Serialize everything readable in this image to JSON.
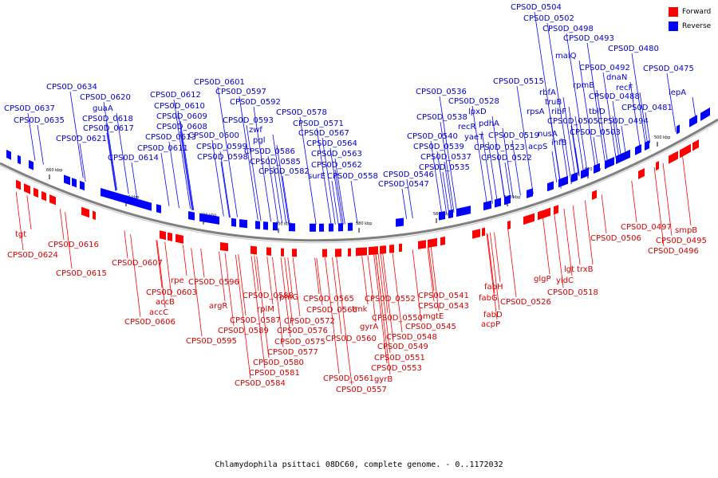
{
  "caption": "Chlamydophila psittaci 08DC60, complete genome. - 0..1172032",
  "legend": {
    "forward": {
      "label": "Forward",
      "color": "#ff0000"
    },
    "reverse": {
      "label": "Reverse",
      "color": "#0000ff"
    }
  },
  "colors": {
    "forward_feature": "#ff0000",
    "reverse_feature": "#0000ff",
    "forward_label": "#d40000",
    "reverse_label": "#0000cc",
    "backbone": "#808080"
  },
  "scale_ticks": [
    "660 kbp",
    "640 kbp",
    "620 kbp",
    "600 kbp",
    "580 kbp",
    "560 kbp",
    "540 kbp",
    "520 kbp",
    "500 kbp"
  ],
  "reverse_labels": [
    "CPS0D_0504",
    "CPS0D_0502",
    "CPS0D_0498",
    "CPS0D_0493",
    "CPS0D_0480",
    "malQ",
    "CPS0D_0492",
    "dnaN",
    "CPS0D_0475",
    "recF",
    "rpmB",
    "CPS0D_0488",
    "lepA",
    "rbfA",
    "CPS0D_0515",
    "truB",
    "ribF",
    "tbiD",
    "CPS0D_0481",
    "CPS0D_0536",
    "CPS0D_0528",
    "CPS0D_0538",
    "lpxD",
    "rpsA",
    "pdhA",
    "recR",
    "CPS0D_0505",
    "CPS0D_0494",
    "nusA",
    "CPS0D_0503",
    "yaeT",
    "CPS0D_0519",
    "infB",
    "CPS0D_0540",
    "acpS",
    "CPS0D_0539",
    "CPS0D_0523",
    "CPS0D_0537",
    "CPS0D_0522",
    "CPS0D_0535",
    "CPS0D_0601",
    "CPS0D_0612",
    "CPS0D_0597",
    "CPS0D_0634",
    "CPS0D_0620",
    "CPS0D_0610",
    "CPS0D_0592",
    "guaA",
    "CPS0D_0637",
    "CPS0D_0609",
    "CPS0D_0618",
    "CPS0D_0578",
    "CPS0D_0593",
    "CPS0D_0635",
    "CPS0D_0608",
    "CPS0D_0617",
    "zwf",
    "CPS0D_0571",
    "CPS0D_0613",
    "CPS0D_0600",
    "CPS0D_0621",
    "pgl",
    "CPS0D_0567",
    "CPS0D_0611",
    "CPS0D_0599",
    "CPS0D_0564",
    "CPS0D_0586",
    "CPS0D_0563",
    "CPS0D_0614",
    "CPS0D_0598",
    "CPS0D_0585",
    "CPS0D_0562",
    "CPS0D_0582",
    "surE",
    "CPS0D_0558",
    "CPS0D_0546",
    "CPS0D_0547"
  ],
  "forward_labels": [
    "tgt",
    "CPS0D_0616",
    "CPS0D_0624",
    "CPS0D_0615",
    "CPS0D_0607",
    "rpe",
    "CPS0D_0596",
    "CPS0D_0603",
    "accB",
    "argR",
    "accC",
    "CPS0D_0606",
    "CPS0D_0595",
    "CPS0D_0588",
    "rpmG",
    "rplM",
    "CPS0D_0587",
    "CPS0D_0589",
    "CPS0D_0572",
    "CPS0D_0576",
    "CPS0D_0575",
    "CPS0D_0577",
    "CPS0D_0580",
    "CPS0D_0581",
    "CPS0D_0584",
    "CPS0D_0565",
    "CPS0D_0566",
    "tmk",
    "CPS0D_0560",
    "gyrA",
    "CPS0D_0561",
    "gyrB",
    "CPS0D_0557",
    "CPS0D_0552",
    "CPS0D_0550",
    "CPS0D_0548",
    "CPS0D_0549",
    "CPS0D_0551",
    "CPS0D_0553",
    "CPS0D_0541",
    "CPS0D_0543",
    "mgtE",
    "CPS0D_0545",
    "fabH",
    "fabG",
    "fabD",
    "acpP",
    "CPS0D_0526",
    "glgP",
    "yidC",
    "CPS0D_0518",
    "lgt",
    "trxB",
    "CPS0D_0506",
    "CPS0D_0497",
    "smpB",
    "CPS0D_0495",
    "CPS0D_0496"
  ]
}
